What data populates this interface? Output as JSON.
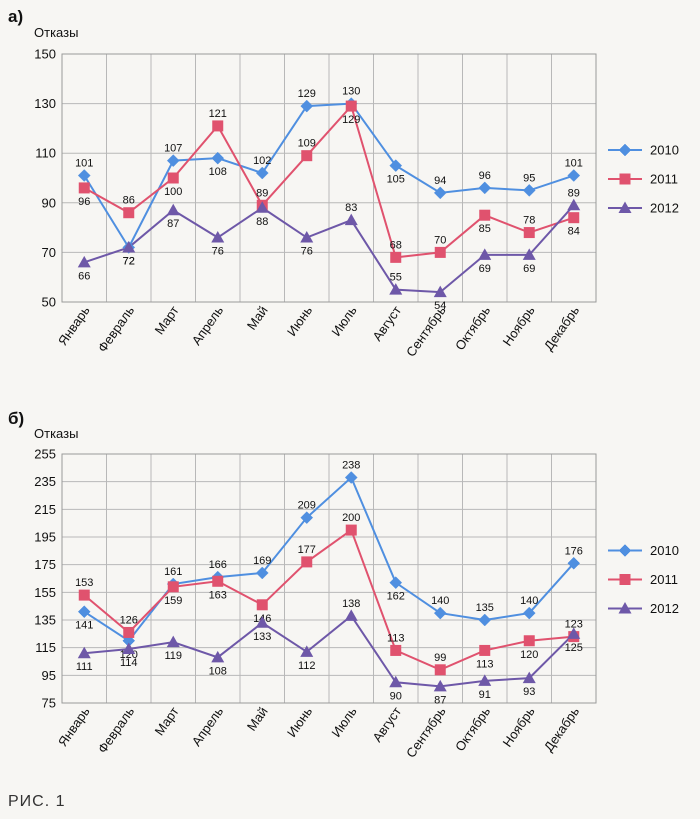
{
  "caption": "РИС. 1",
  "colors": {
    "2010": "#4f8fe0",
    "2011": "#e0526e",
    "2012": "#6e58a8"
  },
  "chart_data": [
    {
      "type": "line",
      "panel_label": "а)",
      "ylabel": "Отказы",
      "xlabel": "",
      "ylim": [
        50,
        150
      ],
      "yticks": [
        50,
        70,
        90,
        110,
        130,
        150
      ],
      "grid": true,
      "legend": "right",
      "categories": [
        "Январь",
        "Февраль",
        "Март",
        "Апрель",
        "Май",
        "Июнь",
        "Июль",
        "Август",
        "Сентябрь",
        "Октябрь",
        "Ноябрь",
        "Декабрь"
      ],
      "series": [
        {
          "name": "2010",
          "marker": "diamond",
          "values": [
            101,
            72,
            107,
            108,
            102,
            129,
            130,
            105,
            94,
            96,
            95,
            101
          ]
        },
        {
          "name": "2011",
          "marker": "square",
          "values": [
            96,
            86,
            100,
            121,
            89,
            109,
            129,
            68,
            70,
            85,
            78,
            84
          ]
        },
        {
          "name": "2012",
          "marker": "triangle",
          "values": [
            66,
            72,
            87,
            76,
            88,
            76,
            83,
            55,
            54,
            69,
            69,
            89
          ]
        }
      ]
    },
    {
      "type": "line",
      "panel_label": "б)",
      "ylabel": "Отказы",
      "xlabel": "",
      "ylim": [
        75,
        255
      ],
      "yticks": [
        75,
        95,
        115,
        135,
        155,
        175,
        195,
        215,
        235,
        255
      ],
      "grid": true,
      "legend": "right",
      "categories": [
        "Январь",
        "Февраль",
        "Март",
        "Апрель",
        "Май",
        "Июнь",
        "Июль",
        "Август",
        "Сентябрь",
        "Октябрь",
        "Ноябрь",
        "Декабрь"
      ],
      "series": [
        {
          "name": "2010",
          "marker": "diamond",
          "values": [
            141,
            120,
            161,
            166,
            169,
            209,
            238,
            162,
            140,
            135,
            140,
            176
          ]
        },
        {
          "name": "2011",
          "marker": "square",
          "values": [
            153,
            126,
            159,
            163,
            146,
            177,
            200,
            113,
            99,
            113,
            120,
            123
          ]
        },
        {
          "name": "2012",
          "marker": "triangle",
          "values": [
            111,
            114,
            119,
            108,
            133,
            112,
            138,
            90,
            87,
            91,
            93,
            125
          ]
        }
      ]
    }
  ]
}
